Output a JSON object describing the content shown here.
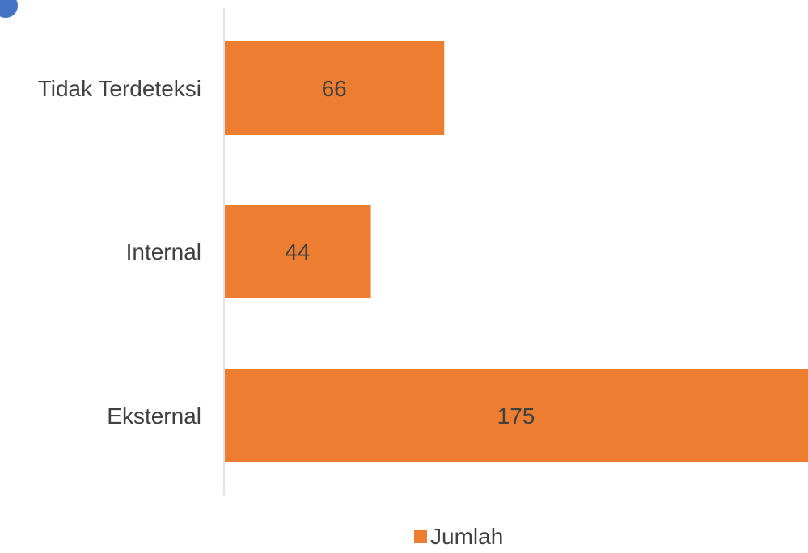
{
  "chart_data": {
    "type": "bar",
    "orientation": "horizontal",
    "categories": [
      "Tidak Terdeteksi",
      "Internal",
      "Eksternal"
    ],
    "series": [
      {
        "name": "Jumlah",
        "values": [
          66,
          44,
          175
        ],
        "color": "#ED7D31"
      }
    ],
    "data_labels": [
      "66",
      "44",
      "175"
    ],
    "xlim": [
      0,
      175
    ],
    "grid": false,
    "legend_position": "bottom",
    "legend": [
      "Jumlah"
    ]
  },
  "colors": {
    "bar": "#ED7D31",
    "axis": "#d9d9d9",
    "text": "#404040",
    "marker": "#4472C4"
  }
}
